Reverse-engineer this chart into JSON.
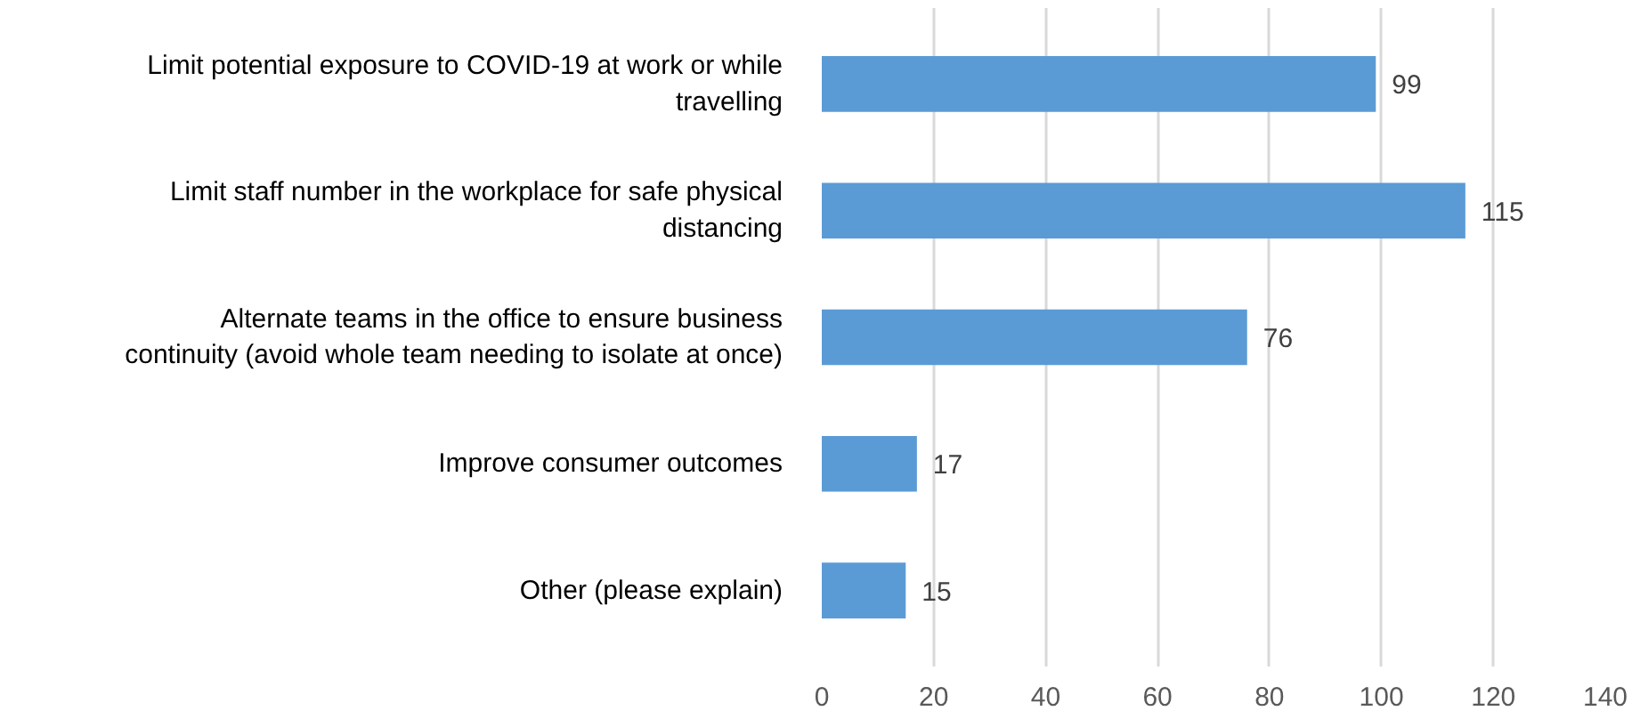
{
  "chart_data": {
    "type": "bar",
    "orientation": "horizontal",
    "categories": [
      "Limit potential exposure to COVID-19 at work or while travelling",
      "Limit staff number in the workplace for safe physical distancing",
      "Alternate teams in the office to ensure business continuity (avoid whole team needing to isolate at once)",
      "Improve consumer outcomes",
      "Other (please explain)"
    ],
    "values": [
      99,
      115,
      76,
      17,
      15
    ],
    "color": "#5b9bd5",
    "xlim": [
      0,
      140
    ],
    "xticks": [
      0,
      20,
      40,
      60,
      80,
      100,
      120,
      140
    ],
    "grid": "x",
    "data_labels": true
  }
}
